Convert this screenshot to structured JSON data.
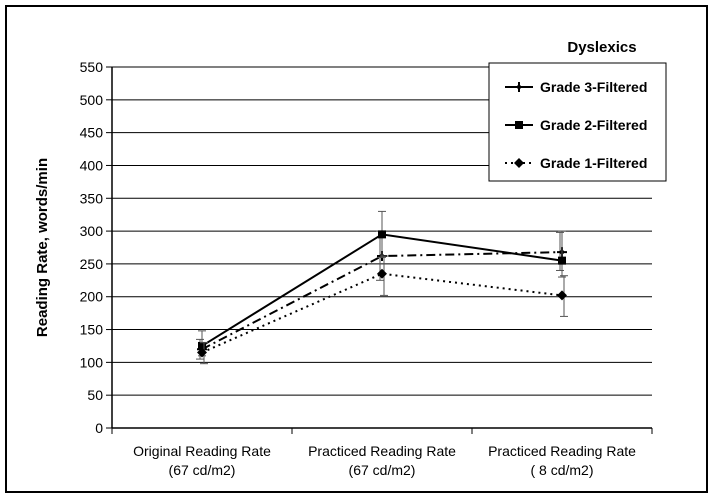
{
  "chart_data": {
    "type": "line",
    "legend_title": "Dyslexics",
    "ylabel": "Reading Rate, words/min",
    "ylim": [
      0,
      550
    ],
    "yticks": [
      0,
      50,
      100,
      150,
      200,
      250,
      300,
      350,
      400,
      450,
      500,
      550
    ],
    "grid": true,
    "legend_position": "top-right",
    "categories": [
      [
        "Original Reading Rate",
        "(67 cd/m2)"
      ],
      [
        "Practiced Reading Rate",
        "(67 cd/m2)"
      ],
      [
        "Practiced Reading Rate",
        "( 8 cd/m2)"
      ]
    ],
    "series": [
      {
        "name": "Grade 3-Filtered",
        "values": [
          120,
          262,
          268
        ],
        "error": [
          [
            105,
            135
          ],
          [
            225,
            300
          ],
          [
            240,
            298
          ]
        ],
        "marker": "plus",
        "dash": "dashdot"
      },
      {
        "name": "Grade 2-Filtered",
        "values": [
          125,
          295,
          255
        ],
        "error": [
          [
            110,
            148
          ],
          [
            260,
            330
          ],
          [
            230,
            300
          ]
        ],
        "marker": "square",
        "dash": "solid"
      },
      {
        "name": "Grade 1-Filtered",
        "values": [
          115,
          235,
          202
        ],
        "error": [
          [
            98,
            130
          ],
          [
            202,
            262
          ],
          [
            170,
            232
          ]
        ],
        "marker": "diamond",
        "dash": "dotted"
      }
    ]
  }
}
